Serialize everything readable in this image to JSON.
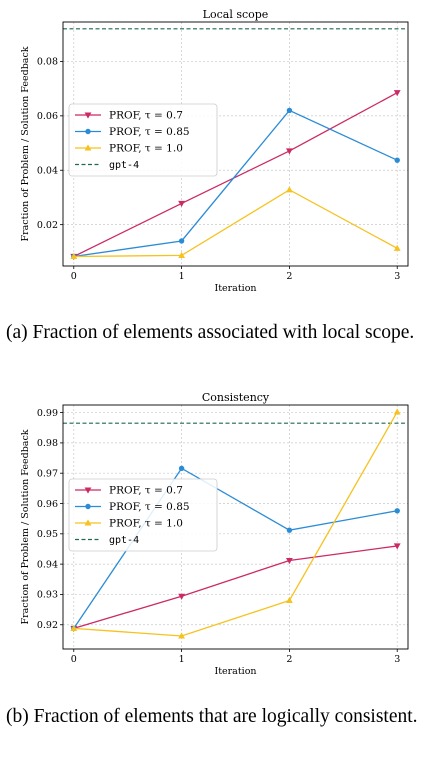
{
  "chart_data": [
    {
      "type": "line",
      "title": "Local scope",
      "xlabel": "Iteration",
      "ylabel": "Fraction of Problem / Solution Feedback",
      "x": [
        0,
        1,
        2,
        3
      ],
      "xlim": [
        -0.1,
        3.1
      ],
      "ylim": [
        0.0048,
        0.0945
      ],
      "yticks": [
        0.02,
        0.04,
        0.06,
        0.08
      ],
      "ytick_labels": [
        "0.02",
        "0.04",
        "0.06",
        "0.08"
      ],
      "grid": true,
      "legend_position": "center-left",
      "series": [
        {
          "name": "PROF, τ = 0.7",
          "marker": "triangle-down",
          "color": "#cc2a64",
          "values": [
            0.0083,
            0.0278,
            0.0471,
            0.0685
          ]
        },
        {
          "name": "PROF, τ = 0.85",
          "marker": "circle",
          "color": "#2b8cd6",
          "values": [
            0.0083,
            0.014,
            0.062,
            0.0437
          ]
        },
        {
          "name": "PROF, τ = 1.0",
          "marker": "triangle-up",
          "color": "#f6c21e",
          "values": [
            0.0083,
            0.0087,
            0.0328,
            0.0113
          ]
        }
      ],
      "reference": {
        "name": "gpt-4",
        "value": 0.092,
        "color": "#1f6b4c",
        "style": "dashed"
      }
    },
    {
      "type": "line",
      "title": "Consistency",
      "xlabel": "Iteration",
      "ylabel": "Fraction of Problem / Solution Feedback",
      "x": [
        0,
        1,
        2,
        3
      ],
      "xlim": [
        -0.1,
        3.1
      ],
      "ylim": [
        0.912,
        0.9925
      ],
      "yticks": [
        0.92,
        0.93,
        0.94,
        0.95,
        0.96,
        0.97,
        0.98,
        0.99
      ],
      "ytick_labels": [
        "0.92",
        "0.93",
        "0.94",
        "0.95",
        "0.96",
        "0.97",
        "0.98",
        "0.99"
      ],
      "grid": true,
      "legend_position": "center-left",
      "series": [
        {
          "name": "PROF, τ = 0.7",
          "marker": "triangle-down",
          "color": "#cc2a64",
          "values": [
            0.9188,
            0.9294,
            0.9412,
            0.946
          ]
        },
        {
          "name": "PROF, τ = 0.85",
          "marker": "circle",
          "color": "#2b8cd6",
          "values": [
            0.9188,
            0.9716,
            0.9512,
            0.9576
          ]
        },
        {
          "name": "PROF, τ = 1.0",
          "marker": "triangle-up",
          "color": "#f6c21e",
          "values": [
            0.9188,
            0.9163,
            0.928,
            0.9902
          ]
        }
      ],
      "reference": {
        "name": "gpt-4",
        "value": 0.9865,
        "color": "#1f6b4c",
        "style": "dashed"
      }
    }
  ],
  "captions": {
    "a": "(a) Fraction of elements associated with local scope.",
    "b": "(b) Fraction of elements that are logically consistent."
  }
}
